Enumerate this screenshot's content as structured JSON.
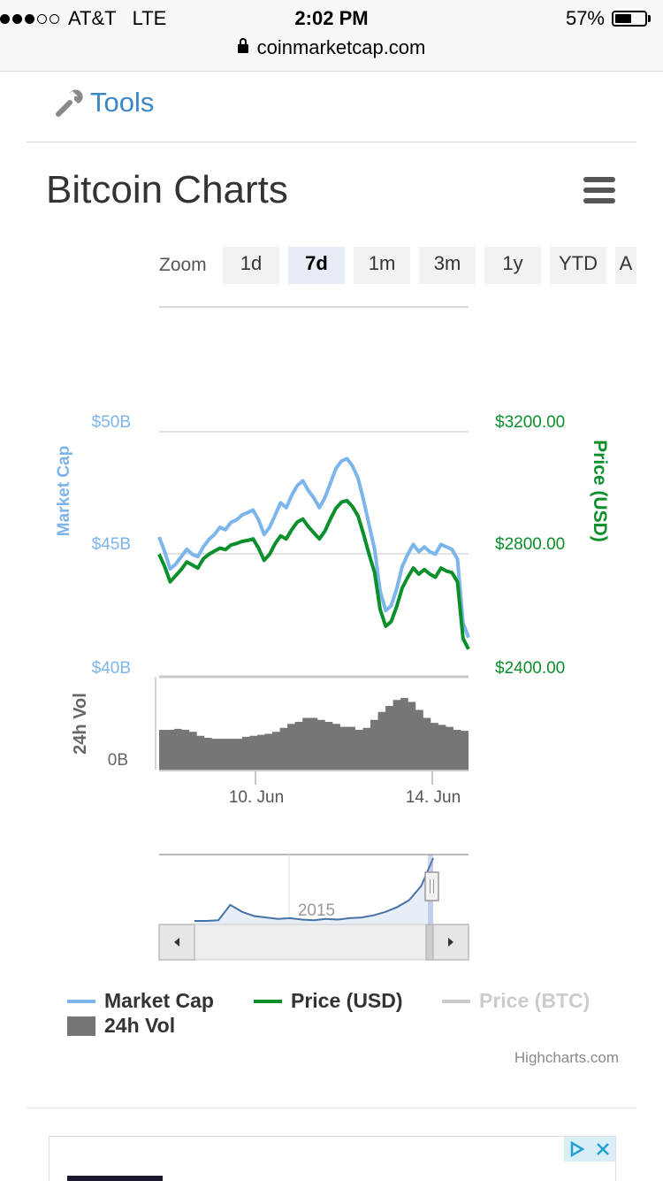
{
  "status_bar": {
    "signal_dots": [
      true,
      true,
      true,
      false,
      false
    ],
    "carrier": "AT&T",
    "network": "LTE",
    "time": "2:02 PM",
    "battery_percent": "57%",
    "battery_level": 0.57,
    "url": "coinmarketcap.com"
  },
  "nav": {
    "tools_label": "Tools"
  },
  "page": {
    "title": "Bitcoin Charts"
  },
  "zoom": {
    "label": "Zoom",
    "buttons": [
      "1d",
      "7d",
      "1m",
      "3m",
      "1y",
      "YTD",
      "A"
    ],
    "active": "7d"
  },
  "colors": {
    "market_cap": "#7cb5ec",
    "price_usd": "#0a8f2a",
    "price_btc": "#cccccc",
    "volume": "#767676",
    "tools_link": "#3a87c8"
  },
  "chart_data": {
    "type": "line",
    "left_axis": {
      "title": "Market Cap",
      "ticks": [
        "$50B",
        "$45B",
        "$40B"
      ],
      "values": [
        50,
        45,
        40
      ],
      "unit": "B USD"
    },
    "right_axis": {
      "title": "Price (USD)",
      "ticks": [
        "$3200.00",
        "$2800.00",
        "$2400.00"
      ],
      "values": [
        3200,
        2800,
        2400
      ]
    },
    "volume_axis": {
      "title": "24h Vol",
      "ticks": [
        "0B"
      ]
    },
    "x_ticks": [
      "10. Jun",
      "14. Jun"
    ],
    "navigator_label": "2015",
    "series": [
      {
        "name": "Market Cap",
        "unit": "$B",
        "values": [
          45.7,
          45.1,
          44.4,
          44.6,
          44.9,
          45.2,
          45.0,
          44.9,
          45.3,
          45.6,
          45.8,
          46.1,
          46.0,
          46.3,
          46.4,
          46.6,
          46.7,
          46.8,
          46.4,
          45.8,
          46.1,
          46.6,
          47.1,
          46.9,
          47.4,
          47.8,
          48.0,
          47.6,
          47.3,
          46.9,
          47.3,
          47.9,
          48.5,
          48.8,
          48.9,
          48.6,
          48.1,
          47.2,
          46.2,
          45.2,
          43.5,
          42.7,
          42.9,
          43.6,
          44.5,
          45.0,
          45.4,
          45.1,
          45.3,
          45.1,
          45.0,
          45.4,
          45.3,
          45.2,
          44.8,
          42.2,
          41.6
        ]
      },
      {
        "name": "Price (USD)",
        "unit": "USD",
        "values": [
          2800,
          2760,
          2710,
          2730,
          2750,
          2775,
          2765,
          2755,
          2785,
          2800,
          2810,
          2820,
          2815,
          2830,
          2835,
          2842,
          2845,
          2850,
          2820,
          2780,
          2800,
          2835,
          2860,
          2850,
          2880,
          2905,
          2915,
          2890,
          2870,
          2850,
          2875,
          2915,
          2950,
          2970,
          2975,
          2955,
          2925,
          2865,
          2800,
          2740,
          2620,
          2565,
          2580,
          2630,
          2690,
          2725,
          2755,
          2735,
          2750,
          2735,
          2725,
          2755,
          2745,
          2740,
          2710,
          2525,
          2490
        ]
      },
      {
        "name": "24h Vol",
        "values": [
          0.4,
          0.4,
          0.41,
          0.4,
          0.38,
          0.34,
          0.32,
          0.31,
          0.31,
          0.31,
          0.31,
          0.33,
          0.34,
          0.35,
          0.36,
          0.38,
          0.42,
          0.46,
          0.48,
          0.52,
          0.52,
          0.5,
          0.48,
          0.46,
          0.43,
          0.43,
          0.4,
          0.42,
          0.5,
          0.58,
          0.64,
          0.7,
          0.72,
          0.68,
          0.6,
          0.52,
          0.47,
          0.45,
          0.43,
          0.4,
          0.39
        ]
      }
    ],
    "navigator_values": [
      0.05,
      0.05,
      0.06,
      0.28,
      0.18,
      0.12,
      0.1,
      0.08,
      0.09,
      0.07,
      0.06,
      0.08,
      0.07,
      0.09,
      0.1,
      0.13,
      0.18,
      0.25,
      0.35,
      0.55,
      0.95
    ],
    "legend": [
      {
        "name": "Market Cap",
        "enabled": true
      },
      {
        "name": "Price (USD)",
        "enabled": true
      },
      {
        "name": "Price (BTC)",
        "enabled": false
      },
      {
        "name": "24h Vol",
        "enabled": true
      }
    ],
    "credit": "Highcharts.com"
  }
}
